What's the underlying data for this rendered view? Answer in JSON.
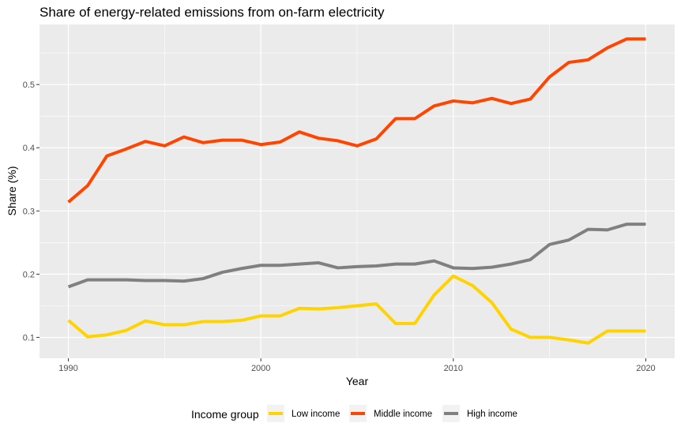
{
  "chart_data": {
    "type": "line",
    "title": "Share of energy-related emissions from on-farm electricity",
    "xlabel": "Year",
    "ylabel": "Share (%)",
    "xlim": [
      1988.5,
      2021.5
    ],
    "ylim": [
      0.067,
      0.595
    ],
    "x_ticks": [
      1990,
      2000,
      2010,
      2020
    ],
    "y_ticks": [
      0.1,
      0.2,
      0.3,
      0.4,
      0.5
    ],
    "y_tick_labels": [
      "0.1",
      "0.2",
      "0.3",
      "0.4",
      "0.5"
    ],
    "grid": true,
    "legend": {
      "title": "Income group",
      "position": "bottom"
    },
    "x": [
      1990,
      1991,
      1992,
      1993,
      1994,
      1995,
      1996,
      1997,
      1998,
      1999,
      2000,
      2001,
      2002,
      2003,
      2004,
      2005,
      2006,
      2007,
      2008,
      2009,
      2010,
      2011,
      2012,
      2013,
      2014,
      2015,
      2016,
      2017,
      2018,
      2019,
      2020
    ],
    "series": [
      {
        "name": "Low income",
        "color": "#FFD300",
        "values": [
          0.127,
          0.101,
          0.104,
          0.111,
          0.126,
          0.12,
          0.12,
          0.125,
          0.125,
          0.127,
          0.134,
          0.134,
          0.146,
          0.145,
          0.147,
          0.15,
          0.153,
          0.122,
          0.122,
          0.167,
          0.197,
          0.182,
          0.155,
          0.113,
          0.1,
          0.1,
          0.096,
          0.091,
          0.11,
          0.11,
          0.11
        ]
      },
      {
        "name": "Middle income",
        "color": "#FF4500",
        "values": [
          0.314,
          0.34,
          0.387,
          0.398,
          0.41,
          0.403,
          0.417,
          0.408,
          0.412,
          0.412,
          0.405,
          0.409,
          0.425,
          0.415,
          0.411,
          0.403,
          0.414,
          0.446,
          0.446,
          0.466,
          0.474,
          0.471,
          0.478,
          0.47,
          0.477,
          0.512,
          0.535,
          0.539,
          0.558,
          0.572,
          0.572
        ]
      },
      {
        "name": "High income",
        "color": "#808080",
        "values": [
          0.18,
          0.191,
          0.191,
          0.191,
          0.19,
          0.19,
          0.189,
          0.193,
          0.203,
          0.209,
          0.214,
          0.214,
          0.216,
          0.218,
          0.21,
          0.212,
          0.213,
          0.216,
          0.216,
          0.221,
          0.21,
          0.209,
          0.211,
          0.216,
          0.223,
          0.247,
          0.254,
          0.271,
          0.27,
          0.279,
          0.279
        ]
      }
    ]
  }
}
